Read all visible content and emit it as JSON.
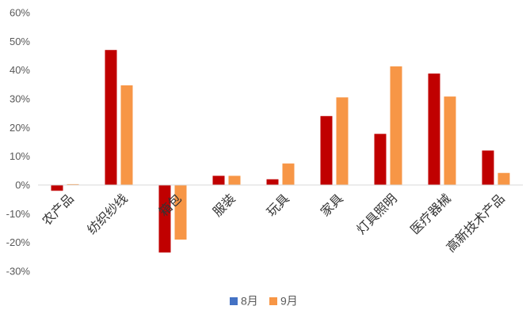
{
  "chart_data": {
    "type": "bar",
    "categories": [
      "农产品",
      "纺织纱线",
      "箱包",
      "服装",
      "玩具",
      "家具",
      "灯具照明",
      "医疗器械",
      "高新技术产品"
    ],
    "series": [
      {
        "name": "8月",
        "values": [
          -2,
          47,
          -23.5,
          3.2,
          2,
          24,
          17.8,
          38.8,
          12
        ],
        "color": "#c00000"
      },
      {
        "name": "9月",
        "values": [
          0.3,
          34.7,
          -19,
          3.2,
          7.5,
          30.5,
          41.3,
          30.8,
          4.2
        ],
        "color": "#f79646"
      }
    ],
    "legend_marker_colors": [
      "#4472c4",
      "#f79646"
    ],
    "ylim": [
      -30,
      60
    ],
    "yticks": [
      -30,
      -20,
      -10,
      0,
      10,
      20,
      30,
      40,
      50,
      60
    ],
    "ytick_format": "percent",
    "legend_position": "bottom-center",
    "grid": false
  }
}
